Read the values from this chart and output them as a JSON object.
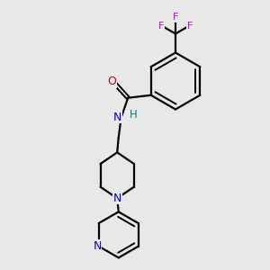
{
  "bg_color": "#e8e8e8",
  "bond_color": "#000000",
  "N_color": "#0000cc",
  "O_color": "#cc0000",
  "F_color": "#cc00cc",
  "H_color": "#008080",
  "figsize": [
    3.0,
    3.0
  ],
  "dpi": 100,
  "xlim": [
    0,
    10
  ],
  "ylim": [
    0,
    10
  ]
}
